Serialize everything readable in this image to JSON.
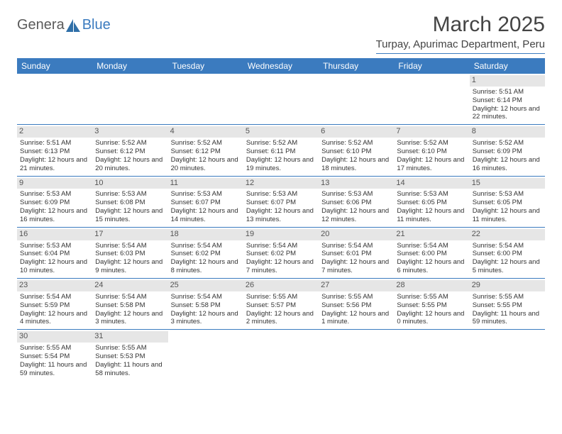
{
  "brand": {
    "part1": "Genera",
    "part2": "Blue"
  },
  "title": "March 2025",
  "location": "Turpay, Apurimac Department, Peru",
  "colors": {
    "accent": "#3b7bbf",
    "header_text": "#ffffff",
    "daynum_bg": "#e6e6e6",
    "text": "#333333",
    "background": "#ffffff"
  },
  "day_headers": [
    "Sunday",
    "Monday",
    "Tuesday",
    "Wednesday",
    "Thursday",
    "Friday",
    "Saturday"
  ],
  "weeks": [
    [
      null,
      null,
      null,
      null,
      null,
      null,
      {
        "n": "1",
        "sunrise": "5:51 AM",
        "sunset": "6:14 PM",
        "daylight": "12 hours and 22 minutes."
      }
    ],
    [
      {
        "n": "2",
        "sunrise": "5:51 AM",
        "sunset": "6:13 PM",
        "daylight": "12 hours and 21 minutes."
      },
      {
        "n": "3",
        "sunrise": "5:52 AM",
        "sunset": "6:12 PM",
        "daylight": "12 hours and 20 minutes."
      },
      {
        "n": "4",
        "sunrise": "5:52 AM",
        "sunset": "6:12 PM",
        "daylight": "12 hours and 20 minutes."
      },
      {
        "n": "5",
        "sunrise": "5:52 AM",
        "sunset": "6:11 PM",
        "daylight": "12 hours and 19 minutes."
      },
      {
        "n": "6",
        "sunrise": "5:52 AM",
        "sunset": "6:10 PM",
        "daylight": "12 hours and 18 minutes."
      },
      {
        "n": "7",
        "sunrise": "5:52 AM",
        "sunset": "6:10 PM",
        "daylight": "12 hours and 17 minutes."
      },
      {
        "n": "8",
        "sunrise": "5:52 AM",
        "sunset": "6:09 PM",
        "daylight": "12 hours and 16 minutes."
      }
    ],
    [
      {
        "n": "9",
        "sunrise": "5:53 AM",
        "sunset": "6:09 PM",
        "daylight": "12 hours and 16 minutes."
      },
      {
        "n": "10",
        "sunrise": "5:53 AM",
        "sunset": "6:08 PM",
        "daylight": "12 hours and 15 minutes."
      },
      {
        "n": "11",
        "sunrise": "5:53 AM",
        "sunset": "6:07 PM",
        "daylight": "12 hours and 14 minutes."
      },
      {
        "n": "12",
        "sunrise": "5:53 AM",
        "sunset": "6:07 PM",
        "daylight": "12 hours and 13 minutes."
      },
      {
        "n": "13",
        "sunrise": "5:53 AM",
        "sunset": "6:06 PM",
        "daylight": "12 hours and 12 minutes."
      },
      {
        "n": "14",
        "sunrise": "5:53 AM",
        "sunset": "6:05 PM",
        "daylight": "12 hours and 11 minutes."
      },
      {
        "n": "15",
        "sunrise": "5:53 AM",
        "sunset": "6:05 PM",
        "daylight": "12 hours and 11 minutes."
      }
    ],
    [
      {
        "n": "16",
        "sunrise": "5:53 AM",
        "sunset": "6:04 PM",
        "daylight": "12 hours and 10 minutes."
      },
      {
        "n": "17",
        "sunrise": "5:54 AM",
        "sunset": "6:03 PM",
        "daylight": "12 hours and 9 minutes."
      },
      {
        "n": "18",
        "sunrise": "5:54 AM",
        "sunset": "6:02 PM",
        "daylight": "12 hours and 8 minutes."
      },
      {
        "n": "19",
        "sunrise": "5:54 AM",
        "sunset": "6:02 PM",
        "daylight": "12 hours and 7 minutes."
      },
      {
        "n": "20",
        "sunrise": "5:54 AM",
        "sunset": "6:01 PM",
        "daylight": "12 hours and 7 minutes."
      },
      {
        "n": "21",
        "sunrise": "5:54 AM",
        "sunset": "6:00 PM",
        "daylight": "12 hours and 6 minutes."
      },
      {
        "n": "22",
        "sunrise": "5:54 AM",
        "sunset": "6:00 PM",
        "daylight": "12 hours and 5 minutes."
      }
    ],
    [
      {
        "n": "23",
        "sunrise": "5:54 AM",
        "sunset": "5:59 PM",
        "daylight": "12 hours and 4 minutes."
      },
      {
        "n": "24",
        "sunrise": "5:54 AM",
        "sunset": "5:58 PM",
        "daylight": "12 hours and 3 minutes."
      },
      {
        "n": "25",
        "sunrise": "5:54 AM",
        "sunset": "5:58 PM",
        "daylight": "12 hours and 3 minutes."
      },
      {
        "n": "26",
        "sunrise": "5:55 AM",
        "sunset": "5:57 PM",
        "daylight": "12 hours and 2 minutes."
      },
      {
        "n": "27",
        "sunrise": "5:55 AM",
        "sunset": "5:56 PM",
        "daylight": "12 hours and 1 minute."
      },
      {
        "n": "28",
        "sunrise": "5:55 AM",
        "sunset": "5:55 PM",
        "daylight": "12 hours and 0 minutes."
      },
      {
        "n": "29",
        "sunrise": "5:55 AM",
        "sunset": "5:55 PM",
        "daylight": "11 hours and 59 minutes."
      }
    ],
    [
      {
        "n": "30",
        "sunrise": "5:55 AM",
        "sunset": "5:54 PM",
        "daylight": "11 hours and 59 minutes."
      },
      {
        "n": "31",
        "sunrise": "5:55 AM",
        "sunset": "5:53 PM",
        "daylight": "11 hours and 58 minutes."
      },
      null,
      null,
      null,
      null,
      null
    ]
  ],
  "labels": {
    "sunrise": "Sunrise: ",
    "sunset": "Sunset: ",
    "daylight": "Daylight: "
  }
}
